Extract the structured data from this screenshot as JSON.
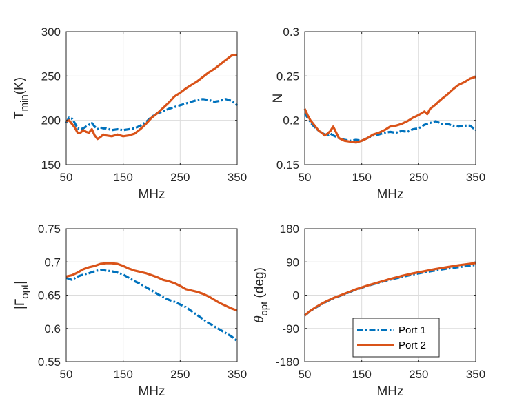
{
  "figure": {
    "legend": [
      {
        "name": "Port 1",
        "color": "#0072BD",
        "style": "dashdot"
      },
      {
        "name": "Port 2",
        "color": "#D95319",
        "style": "solid"
      }
    ]
  },
  "chart_data": [
    {
      "type": "line",
      "id": "tmin",
      "xlabel": "MHz",
      "ylabel": "T_min(K)",
      "ylabel_parts": {
        "main": "T",
        "sub": "min",
        "tail": "(K)"
      },
      "xlim": [
        50,
        350
      ],
      "ylim": [
        150,
        300
      ],
      "xticks": [
        50,
        150,
        250,
        350
      ],
      "yticks": [
        150,
        200,
        250,
        300
      ],
      "grid": true,
      "series": [
        {
          "name": "Port 1",
          "color": "#0072BD",
          "style": "dashdot",
          "x": [
            50,
            55,
            60,
            65,
            70,
            75,
            80,
            85,
            90,
            95,
            100,
            105,
            110,
            115,
            120,
            130,
            140,
            150,
            160,
            170,
            180,
            190,
            200,
            210,
            220,
            230,
            240,
            250,
            260,
            270,
            280,
            290,
            300,
            310,
            320,
            330,
            340,
            350
          ],
          "y": [
            197,
            203,
            202,
            197,
            191,
            190,
            191,
            193,
            195,
            197,
            193,
            190,
            192,
            191,
            191,
            189,
            190,
            189,
            190,
            191,
            194,
            198,
            204,
            208,
            210,
            213,
            215,
            217,
            219,
            221,
            223,
            224,
            223,
            221,
            222,
            224,
            222,
            217
          ]
        },
        {
          "name": "Port 2",
          "color": "#D95319",
          "style": "solid",
          "x": [
            50,
            55,
            60,
            65,
            70,
            75,
            80,
            85,
            90,
            95,
            100,
            105,
            110,
            115,
            120,
            130,
            140,
            150,
            160,
            170,
            180,
            190,
            200,
            210,
            220,
            230,
            240,
            250,
            260,
            270,
            280,
            290,
            300,
            310,
            320,
            330,
            340,
            350
          ],
          "y": [
            199,
            200,
            196,
            192,
            186,
            186,
            189,
            187,
            186,
            190,
            183,
            179,
            181,
            184,
            183,
            182,
            184,
            182,
            183,
            185,
            190,
            196,
            203,
            208,
            214,
            220,
            227,
            231,
            236,
            240,
            244,
            249,
            254,
            258,
            263,
            268,
            273,
            274
          ]
        }
      ]
    },
    {
      "type": "line",
      "id": "n",
      "xlabel": "MHz",
      "ylabel": "N",
      "ylabel_parts": {
        "main": "N",
        "sub": "",
        "tail": ""
      },
      "xlim": [
        50,
        350
      ],
      "ylim": [
        0.15,
        0.3
      ],
      "xticks": [
        50,
        150,
        250,
        350
      ],
      "yticks": [
        0.15,
        0.2,
        0.25,
        0.3
      ],
      "grid": true,
      "series": [
        {
          "name": "Port 1",
          "color": "#0072BD",
          "style": "dashdot",
          "x": [
            50,
            55,
            60,
            65,
            70,
            75,
            80,
            85,
            90,
            95,
            100,
            110,
            120,
            130,
            140,
            150,
            160,
            170,
            180,
            190,
            200,
            210,
            220,
            230,
            240,
            250,
            260,
            270,
            280,
            290,
            300,
            310,
            320,
            330,
            340,
            350
          ],
          "y": [
            0.208,
            0.203,
            0.198,
            0.194,
            0.191,
            0.188,
            0.186,
            0.184,
            0.183,
            0.185,
            0.183,
            0.18,
            0.178,
            0.177,
            0.178,
            0.177,
            0.18,
            0.183,
            0.184,
            0.186,
            0.187,
            0.186,
            0.188,
            0.187,
            0.19,
            0.191,
            0.195,
            0.197,
            0.199,
            0.196,
            0.196,
            0.194,
            0.193,
            0.194,
            0.194,
            0.189
          ]
        },
        {
          "name": "Port 2",
          "color": "#D95319",
          "style": "solid",
          "x": [
            50,
            55,
            60,
            65,
            70,
            75,
            80,
            85,
            90,
            95,
            100,
            110,
            120,
            130,
            140,
            150,
            160,
            170,
            180,
            190,
            200,
            210,
            220,
            230,
            240,
            250,
            260,
            265,
            270,
            280,
            290,
            300,
            310,
            320,
            330,
            340,
            350
          ],
          "y": [
            0.213,
            0.206,
            0.2,
            0.196,
            0.192,
            0.188,
            0.186,
            0.183,
            0.185,
            0.188,
            0.193,
            0.18,
            0.177,
            0.176,
            0.175,
            0.177,
            0.18,
            0.184,
            0.186,
            0.189,
            0.193,
            0.194,
            0.196,
            0.199,
            0.203,
            0.206,
            0.21,
            0.207,
            0.213,
            0.218,
            0.224,
            0.229,
            0.235,
            0.24,
            0.243,
            0.247,
            0.249
          ]
        }
      ]
    },
    {
      "type": "line",
      "id": "gamma",
      "xlabel": "MHz",
      "ylabel": "|Γ_opt|",
      "ylabel_parts": {
        "main": "|Γ",
        "sub": "opt",
        "tail": "|"
      },
      "xlim": [
        50,
        350
      ],
      "ylim": [
        0.55,
        0.75
      ],
      "xticks": [
        50,
        150,
        250,
        350
      ],
      "yticks": [
        0.55,
        0.6,
        0.65,
        0.7,
        0.75
      ],
      "grid": true,
      "series": [
        {
          "name": "Port 1",
          "color": "#0072BD",
          "style": "dashdot",
          "x": [
            50,
            60,
            70,
            80,
            90,
            100,
            110,
            120,
            130,
            140,
            150,
            160,
            170,
            180,
            190,
            200,
            210,
            220,
            230,
            240,
            250,
            260,
            270,
            280,
            290,
            300,
            310,
            320,
            330,
            340,
            350
          ],
          "y": [
            0.676,
            0.673,
            0.678,
            0.681,
            0.683,
            0.686,
            0.688,
            0.687,
            0.686,
            0.684,
            0.681,
            0.676,
            0.671,
            0.667,
            0.662,
            0.657,
            0.652,
            0.647,
            0.643,
            0.64,
            0.636,
            0.632,
            0.626,
            0.62,
            0.614,
            0.608,
            0.603,
            0.598,
            0.593,
            0.588,
            0.581
          ]
        },
        {
          "name": "Port 2",
          "color": "#D95319",
          "style": "solid",
          "x": [
            50,
            60,
            70,
            80,
            90,
            100,
            110,
            120,
            130,
            140,
            150,
            160,
            170,
            180,
            190,
            200,
            210,
            220,
            230,
            240,
            250,
            260,
            270,
            280,
            290,
            300,
            310,
            320,
            330,
            340,
            350
          ],
          "y": [
            0.678,
            0.68,
            0.684,
            0.689,
            0.692,
            0.694,
            0.697,
            0.698,
            0.698,
            0.697,
            0.694,
            0.69,
            0.687,
            0.685,
            0.683,
            0.68,
            0.677,
            0.673,
            0.671,
            0.668,
            0.664,
            0.659,
            0.657,
            0.655,
            0.652,
            0.648,
            0.643,
            0.638,
            0.634,
            0.63,
            0.627
          ]
        }
      ]
    },
    {
      "type": "line",
      "id": "theta",
      "xlabel": "MHz",
      "ylabel": "θ_opt (deg)",
      "ylabel_parts": {
        "main": "θ",
        "sub": "opt",
        "tail": " (deg)"
      },
      "xlim": [
        50,
        350
      ],
      "ylim": [
        -180,
        180
      ],
      "xticks": [
        50,
        150,
        250,
        350
      ],
      "yticks": [
        -180,
        -90,
        0,
        90,
        180
      ],
      "grid": true,
      "legend_position": "bottom-center",
      "series": [
        {
          "name": "Port 1",
          "color": "#0072BD",
          "style": "dashdot",
          "x": [
            50,
            60,
            70,
            80,
            90,
            100,
            120,
            140,
            160,
            180,
            200,
            220,
            240,
            260,
            280,
            300,
            320,
            340,
            350
          ],
          "y": [
            -55,
            -43,
            -33,
            -24,
            -16,
            -9,
            3,
            15,
            25,
            34,
            42,
            49,
            56,
            62,
            67,
            72,
            76,
            80,
            82
          ]
        },
        {
          "name": "Port 2",
          "color": "#D95319",
          "style": "solid",
          "x": [
            50,
            60,
            70,
            80,
            90,
            100,
            120,
            140,
            160,
            180,
            200,
            220,
            240,
            260,
            280,
            300,
            320,
            340,
            350
          ],
          "y": [
            -55,
            -42,
            -32,
            -23,
            -15,
            -8,
            4,
            16,
            26,
            35,
            44,
            52,
            59,
            65,
            71,
            76,
            81,
            85,
            87
          ]
        }
      ]
    }
  ]
}
